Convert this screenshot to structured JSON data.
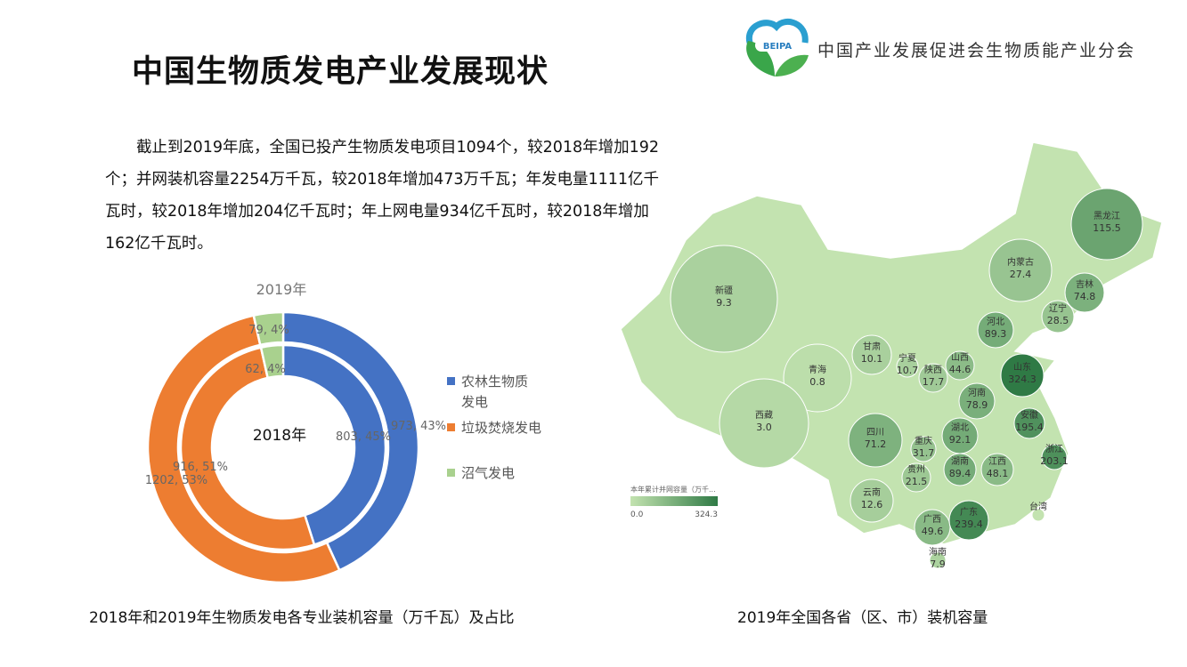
{
  "header": {
    "title": "中国生物质发电产业发展现状",
    "org_name": "中国产业发展促进会生物质能产业分会",
    "logo_text": "BEIPA"
  },
  "paragraph": "截止到2019年底，全国已投产生物质发电项目1094个，较2018年增加192个；并网装机容量2254万千瓦，较2018年增加473万千瓦；年发电量1111亿千瓦时，较2018年增加204亿千瓦时；年上网电量934亿千瓦时，较2018年增加162亿千瓦时。",
  "captions": {
    "donut": "2018年和2019年生物质发电各专业装机容量（万千瓦）及占比",
    "map": "2019年全国各省（区、市）装机容量"
  },
  "chart_data": [
    {
      "type": "pie",
      "variant": "double-donut",
      "outer_label": "2019年",
      "inner_label": "2018年",
      "categories": [
        "农林生物质发电",
        "垃圾焚烧发电",
        "沼气发电"
      ],
      "colors": [
        "#4472c4",
        "#ed7d31",
        "#a9d18e"
      ],
      "series": [
        {
          "name": "2019年",
          "values": [
            973,
            1202,
            79
          ],
          "labels": [
            "973, 43%",
            "1202, 53%",
            "79, 4%"
          ]
        },
        {
          "name": "2018年",
          "values": [
            803,
            916,
            62
          ],
          "labels": [
            "803, 45%",
            "916, 51%",
            "62, 4%"
          ]
        }
      ],
      "legend": "right"
    },
    {
      "type": "heatmap",
      "variant": "choropleth-map",
      "legend_title": "本年累计并网容量（万千...",
      "range": [
        0.0,
        324.3
      ],
      "range_labels": [
        "0.0",
        "324.3"
      ],
      "colors": [
        "#c3e3b0",
        "#2f7a45"
      ],
      "regions": [
        {
          "name": "黑龙江",
          "value": 115.5
        },
        {
          "name": "吉林",
          "value": 74.8
        },
        {
          "name": "辽宁",
          "value": 28.5
        },
        {
          "name": "内蒙古",
          "value": 27.4
        },
        {
          "name": "新疆",
          "value": 9.3
        },
        {
          "name": "河北",
          "value": 89.3
        },
        {
          "name": "甘肃",
          "value": 10.1
        },
        {
          "name": "宁夏",
          "value": 10.7
        },
        {
          "name": "陕西",
          "value": 17.7
        },
        {
          "name": "山西",
          "value": 44.6
        },
        {
          "name": "山东",
          "value": 324.3
        },
        {
          "name": "青海",
          "value": 0.8
        },
        {
          "name": "河南",
          "value": 78.9
        },
        {
          "name": "安徽",
          "value": 195.4
        },
        {
          "name": "西藏",
          "value": 3.0
        },
        {
          "name": "四川",
          "value": 71.2
        },
        {
          "name": "重庆",
          "value": 31.7
        },
        {
          "name": "湖北",
          "value": 92.1
        },
        {
          "name": "浙江",
          "value": 203.1
        },
        {
          "name": "贵州",
          "value": 21.5
        },
        {
          "name": "湖南",
          "value": 89.4
        },
        {
          "name": "江西",
          "value": 48.1
        },
        {
          "name": "云南",
          "value": 12.6
        },
        {
          "name": "广西",
          "value": 49.6
        },
        {
          "name": "广东",
          "value": 239.4
        },
        {
          "name": "海南",
          "value": 7.9
        },
        {
          "name": "台湾",
          "value": null
        }
      ]
    }
  ]
}
